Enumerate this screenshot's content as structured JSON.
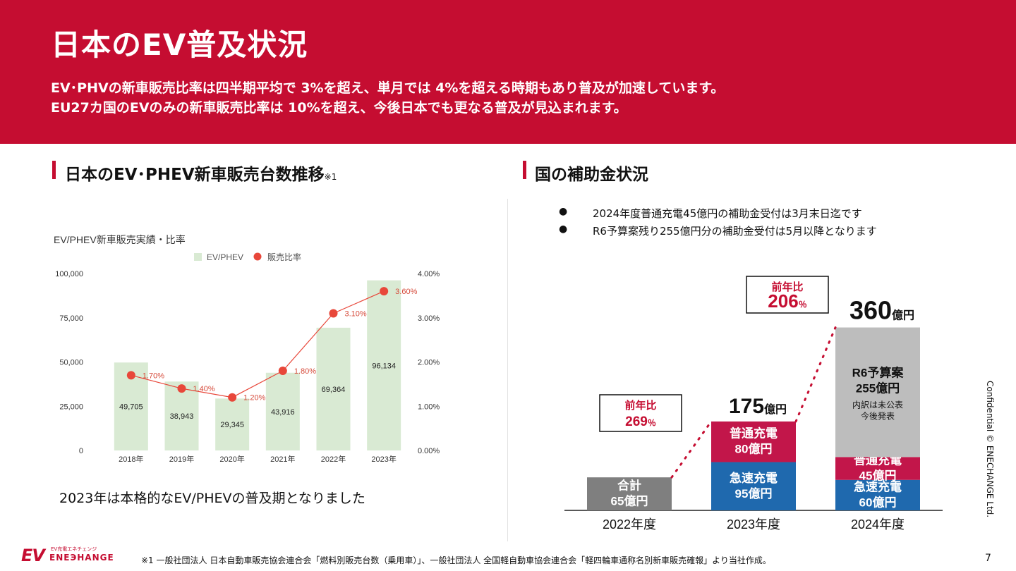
{
  "header": {
    "title": "日本のEV普及状況",
    "subtitle_line1": "EV･PHVの新車販売比率は四半期平均で 3%を超え、単月では 4%を超える時期もあり普及が加速しています。",
    "subtitle_line2": "EU27カ国のEVのみの新車販売比率は 10%を超え、今後日本でも更なる普及が見込まれます。"
  },
  "left_section": {
    "heading": "日本のEV･PHEV新車販売台数推移",
    "heading_note": "※1",
    "caption": "2023年は本格的なEV/PHEVの普及期となりました"
  },
  "right_section": {
    "heading": "国の補助金状況",
    "bullets": [
      "2024年度普通充電45億円の補助金受付は3月末日迄です",
      "R6予算案残り255億円分の補助金受付は5月以降となります"
    ]
  },
  "chart_data": [
    {
      "type": "bar",
      "title": "EV/PHEV新車販売実績・比率",
      "categories": [
        "2018年",
        "2019年",
        "2020年",
        "2021年",
        "2022年",
        "2023年"
      ],
      "series": [
        {
          "name": "EV/PHEV",
          "type": "bar",
          "axis": "left",
          "values": [
            49705,
            38943,
            29345,
            43916,
            69364,
            96134
          ],
          "labels": [
            "49,705",
            "38,943",
            "29,345",
            "43,916",
            "69,364",
            "96,134"
          ]
        },
        {
          "name": "販売比率",
          "type": "line",
          "axis": "right",
          "values": [
            1.7,
            1.4,
            1.2,
            1.8,
            3.1,
            3.6
          ],
          "labels": [
            "1.70%",
            "1.40%",
            "1.20%",
            "1.80%",
            "3.10%",
            "3.60%"
          ]
        }
      ],
      "ylim": [
        0,
        100000
      ],
      "y_ticks": [
        "0",
        "25,000",
        "50,000",
        "75,000",
        "100,000"
      ],
      "y2lim": [
        0,
        4
      ],
      "y2_ticks": [
        "0.00%",
        "1.00%",
        "2.00%",
        "3.00%",
        "4.00%"
      ],
      "grid": false,
      "legend": "top-center",
      "colors": {
        "bar": "#d9ead3",
        "line": "#e8473a",
        "label": "#d64a3a"
      }
    },
    {
      "type": "bar",
      "stacked": true,
      "categories": [
        "2022年度",
        "2023年度",
        "2024年度"
      ],
      "series": [
        {
          "name": "急速充電",
          "values": [
            0,
            95,
            60
          ],
          "labels": [
            "",
            "急速充電|95億円",
            "急速充電|60億円"
          ],
          "color": "#1f69ae"
        },
        {
          "name": "普通充電",
          "values": [
            0,
            80,
            45
          ],
          "labels": [
            "",
            "普通充電|80億円",
            "普通充電|45億円"
          ],
          "color": "#c2164a"
        },
        {
          "name": "R6予算案",
          "values": [
            0,
            0,
            255
          ],
          "labels": [
            "",
            "",
            "R6予算案|255億円|内訳は未公表|今後発表"
          ],
          "color": "#bdbdbd"
        },
        {
          "name": "合計",
          "values": [
            65,
            0,
            0
          ],
          "labels": [
            "合計|65億円",
            "",
            ""
          ],
          "color": "#7f7f7f"
        }
      ],
      "totals": [
        {
          "value": "",
          "unit": ""
        },
        {
          "value": "175",
          "unit": "億円"
        },
        {
          "value": "360",
          "unit": "億円"
        }
      ],
      "growth": [
        {
          "label": "前年比",
          "value": "269",
          "unit": "％"
        },
        {
          "label": "前年比",
          "value": "206",
          "unit": "％"
        }
      ],
      "ylim": [
        0,
        400
      ],
      "colors": {
        "growth_text": "#c50d31",
        "connector": "#c50d31"
      }
    }
  ],
  "footer": {
    "confidential": "Confidential © ENECHANGE  Ltd.",
    "logo_mark": "EV",
    "logo_tagline": "EV充電エネチェンジ",
    "logo_name": "ENEЭHANGE",
    "footnote": "※1 一般社団法人 日本自動車販売協会連合会「燃料別販売台数（乗用車）」、一般社団法人 全国軽自動車協会連合会「軽四輪車通称名別新車販売確報」より当社作成。",
    "page_number": "7"
  }
}
